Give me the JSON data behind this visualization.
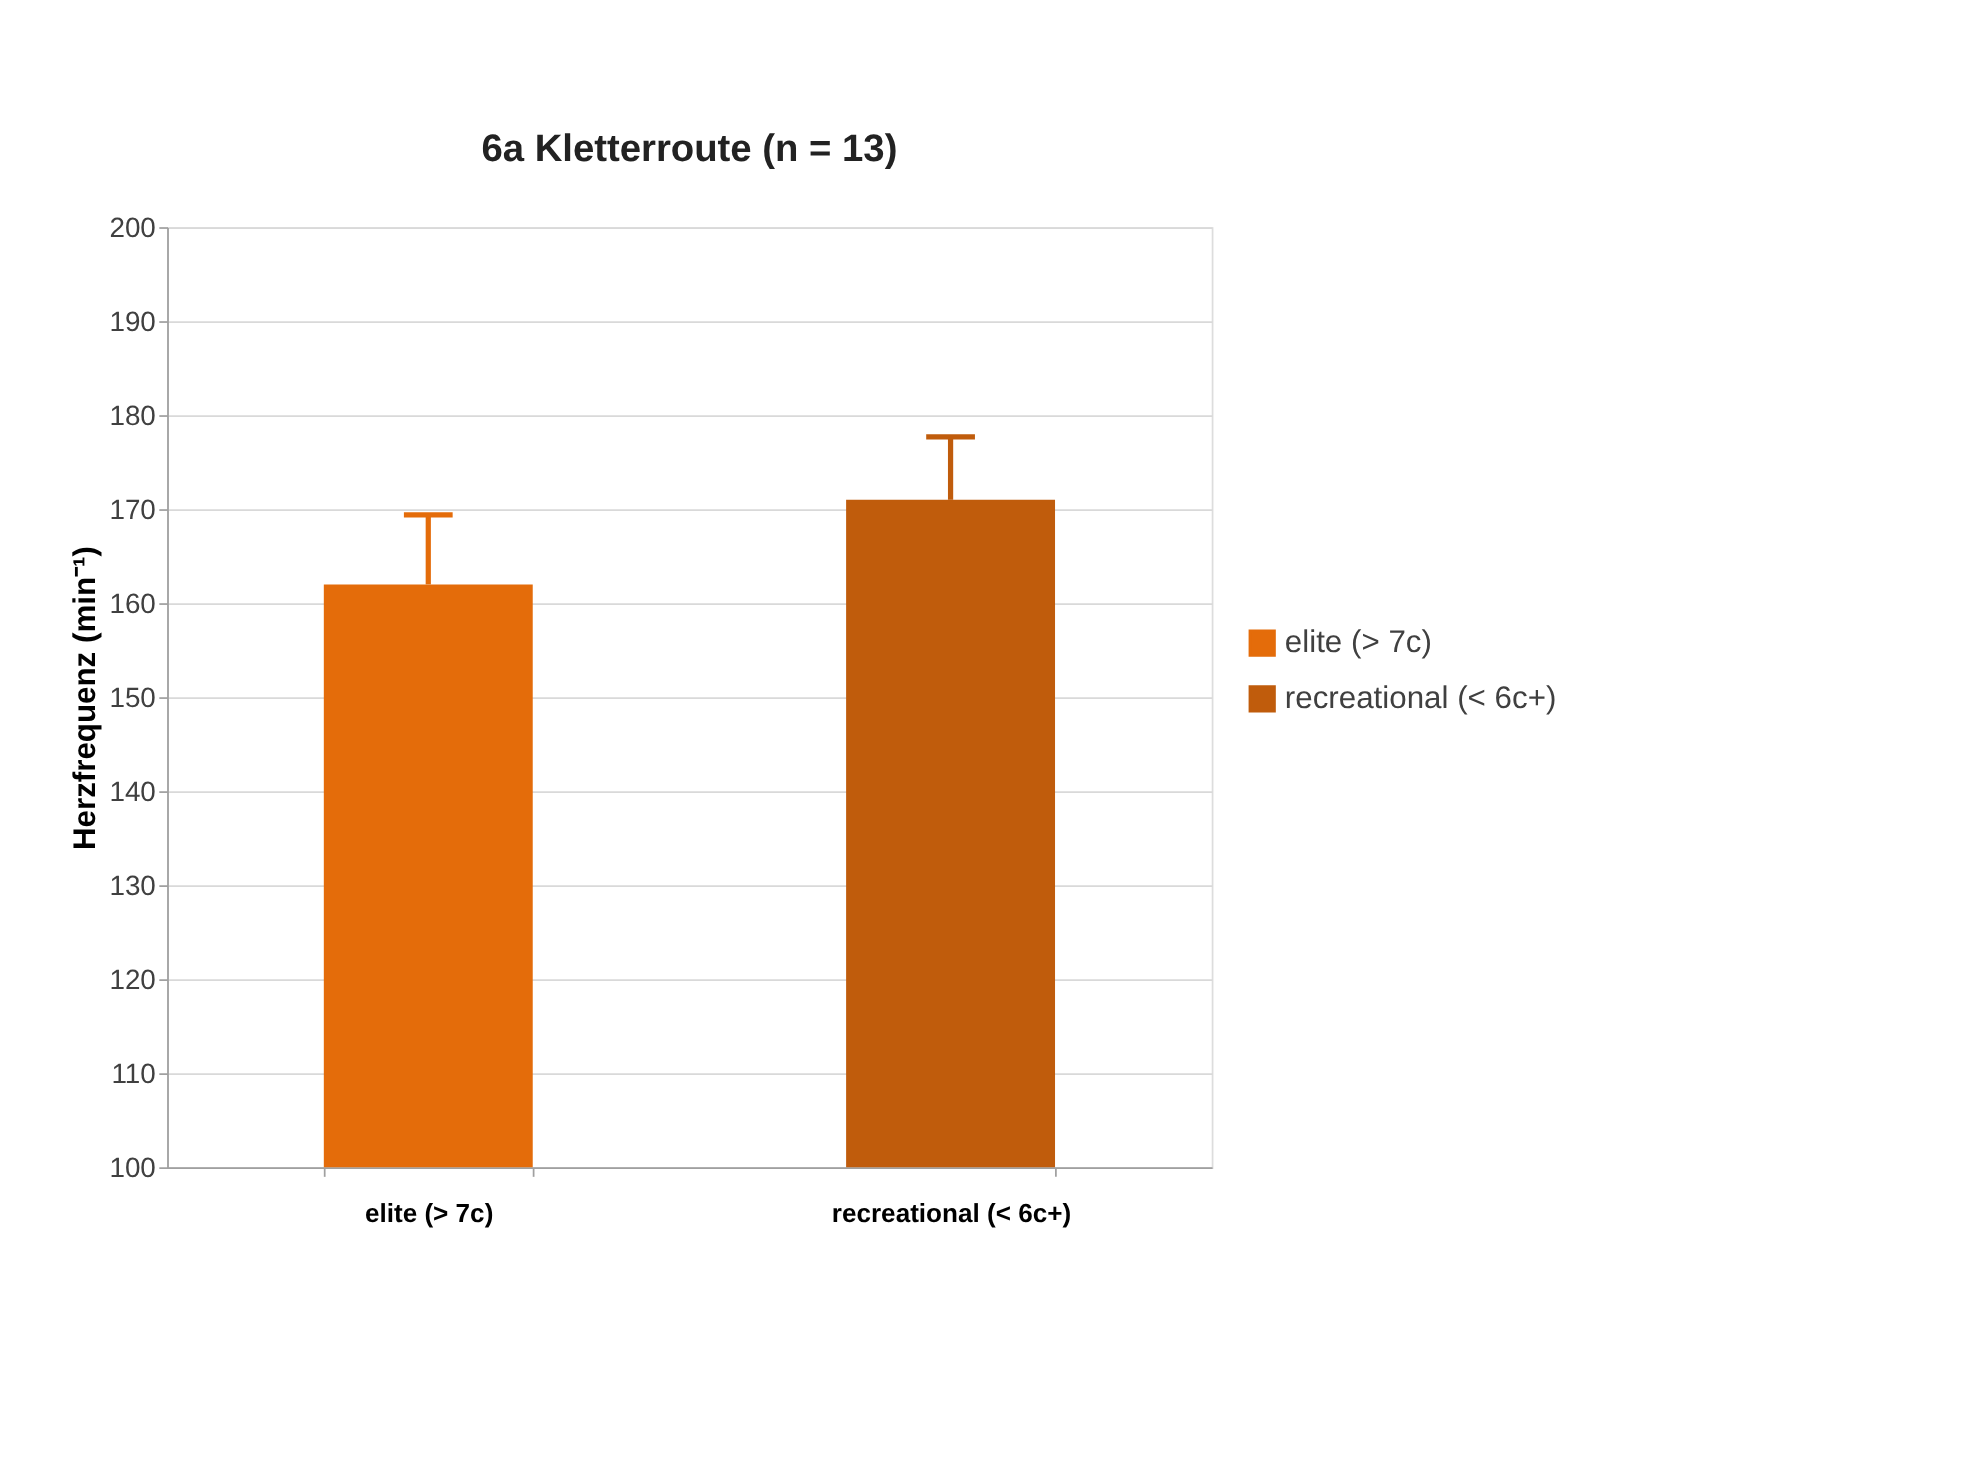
{
  "chart_data": {
    "type": "bar",
    "title": "6a Kletterroute (n = 13)",
    "ylabel": "Herzfrequenz  (min⁻¹)",
    "categories": [
      "elite (> 7c)",
      "recreational (< 6c+)"
    ],
    "series": [
      {
        "name": "elite (> 7c)",
        "color": "#e46c0a",
        "values": [
          162,
          null
        ],
        "errors": [
          [
            162,
            169.4
          ],
          null
        ]
      },
      {
        "name": "recreational (< 6c+)",
        "color": "#c05c0c",
        "values": [
          null,
          171
        ],
        "errors": [
          null,
          [
            171,
            177.7
          ]
        ]
      }
    ],
    "ylim": [
      100,
      200
    ],
    "yticks": [
      100,
      110,
      120,
      130,
      140,
      150,
      160,
      170,
      180,
      190,
      200
    ],
    "grid": "y",
    "legend": "right"
  }
}
